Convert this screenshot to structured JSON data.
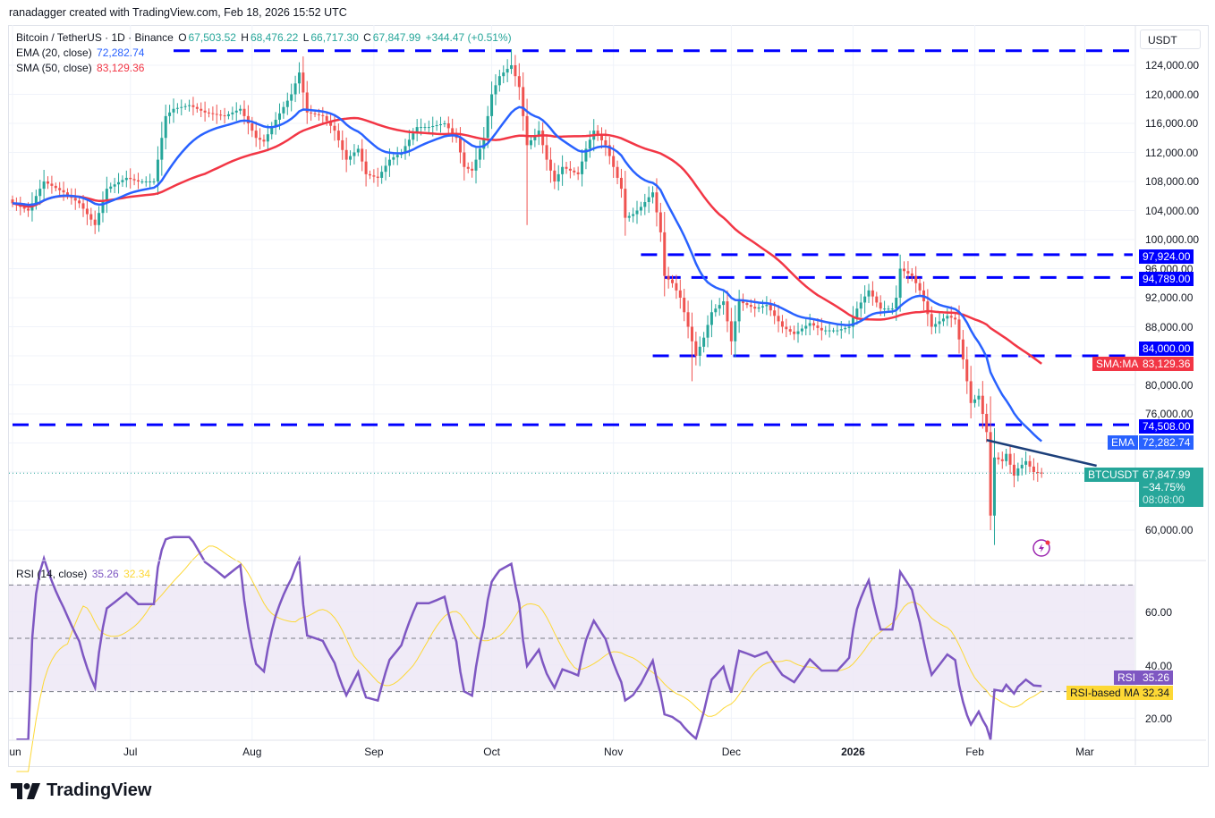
{
  "header": {
    "attribution": "ranadagger created with TradingView.com, Feb 18, 2026 15:52 UTC"
  },
  "legend": {
    "symbol": "Bitcoin / TetherUS · 1D · Binance",
    "o_label": "O",
    "o": "67,503.52",
    "h_label": "H",
    "h": "68,476.22",
    "l_label": "L",
    "l": "66,717.30",
    "c_label": "C",
    "c": "67,847.99",
    "change": "+344.47 (+0.51%)",
    "ema_label": "EMA (20, close)",
    "ema_value": "72,282.74",
    "sma_label": "SMA (50, close)",
    "sma_value": "83,129.36"
  },
  "rsi_legend": {
    "label": "RSI (14, close)",
    "value": "35.26",
    "ma_value": "32.34"
  },
  "axis": {
    "currency": "USDT",
    "price_ticks": [
      124000,
      120000,
      116000,
      112000,
      108000,
      104000,
      100000,
      96000,
      92000,
      88000,
      80000,
      76000,
      60000
    ],
    "rsi_ticks": [
      "60.00",
      "40.00",
      "20.00"
    ],
    "date_ticks": [
      {
        "date": "2025-06-01",
        "label": "Jun"
      },
      {
        "date": "2025-07-01",
        "label": "Jul"
      },
      {
        "date": "2025-08-01",
        "label": "Aug"
      },
      {
        "date": "2025-09-01",
        "label": "Sep"
      },
      {
        "date": "2025-10-01",
        "label": "Oct"
      },
      {
        "date": "2025-11-01",
        "label": "Nov"
      },
      {
        "date": "2025-12-01",
        "label": "Dec"
      },
      {
        "date": "2026-01-01",
        "label": "2026",
        "bold": true
      },
      {
        "date": "2026-02-01",
        "label": "Feb"
      },
      {
        "date": "2026-03-01",
        "label": "Mar"
      }
    ]
  },
  "price_labels": {
    "r1": "97,924.00",
    "r2": "94,789.00",
    "s1": "84,000.00",
    "sma_tag": "SMA:MA",
    "sma": "83,129.36",
    "s2": "74,508.00",
    "ema_tag": "EMA",
    "ema": "72,282.74",
    "symbol_tag": "BTCUSDT",
    "last": "67,847.99",
    "pct": "−34.75%",
    "countdown": "08:08:00",
    "rsi_tag": "RSI",
    "rsi": "35.26",
    "rsi_ma_tag": "RSI-based MA",
    "rsi_ma": "32.34"
  },
  "colors": {
    "up": "#26a69a",
    "down": "#ef5350",
    "ema": "#2962ff",
    "sma": "#f23645",
    "levels": "#0000ff",
    "trendline": "#1c3f7a",
    "rsi": "#7e57c2",
    "rsi_ma": "#fdd835",
    "rsi_band": "#ede7f6"
  },
  "branding": {
    "logo_text": "TradingView"
  },
  "chart_data": {
    "type": "candlestick",
    "interval": "1D",
    "symbol": "BTCUSDT",
    "ylim": [
      58000,
      127800
    ],
    "closes": [
      [
        "2025-06-01",
        105000
      ],
      [
        "2025-06-05",
        104000
      ],
      [
        "2025-06-09",
        108000
      ],
      [
        "2025-06-14",
        106500
      ],
      [
        "2025-06-18",
        105000
      ],
      [
        "2025-06-22",
        102000
      ],
      [
        "2025-06-25",
        107000
      ],
      [
        "2025-06-30",
        108500
      ],
      [
        "2025-07-03",
        108000
      ],
      [
        "2025-07-07",
        108000
      ],
      [
        "2025-07-10",
        117000
      ],
      [
        "2025-07-12",
        118000
      ],
      [
        "2025-07-16",
        118500
      ],
      [
        "2025-07-20",
        117500
      ],
      [
        "2025-07-25",
        117000
      ],
      [
        "2025-07-29",
        118000
      ],
      [
        "2025-08-02",
        114000
      ],
      [
        "2025-08-04",
        113500
      ],
      [
        "2025-08-07",
        116500
      ],
      [
        "2025-08-11",
        120000
      ],
      [
        "2025-08-13",
        123000
      ],
      [
        "2025-08-15",
        117500
      ],
      [
        "2025-08-19",
        117000
      ],
      [
        "2025-08-22",
        115000
      ],
      [
        "2025-08-25",
        111000
      ],
      [
        "2025-08-28",
        112500
      ],
      [
        "2025-08-30",
        109000
      ],
      [
        "2025-09-02",
        108500
      ],
      [
        "2025-09-05",
        111000
      ],
      [
        "2025-09-08",
        112000
      ],
      [
        "2025-09-12",
        115500
      ],
      [
        "2025-09-15",
        115500
      ],
      [
        "2025-09-19",
        116000
      ],
      [
        "2025-09-22",
        114000
      ],
      [
        "2025-09-24",
        110000
      ],
      [
        "2025-09-26",
        109500
      ],
      [
        "2025-09-29",
        114000
      ],
      [
        "2025-10-01",
        120000
      ],
      [
        "2025-10-03",
        122500
      ],
      [
        "2025-10-06",
        124000
      ],
      [
        "2025-10-08",
        121000
      ],
      [
        "2025-10-10",
        113000
      ],
      [
        "2025-10-13",
        115000
      ],
      [
        "2025-10-15",
        111000
      ],
      [
        "2025-10-17",
        108000
      ],
      [
        "2025-10-19",
        110000
      ],
      [
        "2025-10-23",
        109000
      ],
      [
        "2025-10-25",
        112500
      ],
      [
        "2025-10-27",
        115000
      ],
      [
        "2025-10-30",
        113000
      ],
      [
        "2025-11-01",
        110000
      ],
      [
        "2025-11-03",
        107000
      ],
      [
        "2025-11-04",
        103000
      ],
      [
        "2025-11-06",
        103500
      ],
      [
        "2025-11-08",
        104500
      ],
      [
        "2025-11-11",
        106500
      ],
      [
        "2025-11-13",
        101000
      ],
      [
        "2025-11-14",
        95000
      ],
      [
        "2025-11-16",
        94000
      ],
      [
        "2025-11-18",
        92000
      ],
      [
        "2025-11-21",
        86000
      ],
      [
        "2025-11-22",
        84000
      ],
      [
        "2025-11-24",
        86500
      ],
      [
        "2025-11-26",
        90000
      ],
      [
        "2025-11-29",
        91500
      ],
      [
        "2025-12-01",
        86000
      ],
      [
        "2025-12-03",
        91500
      ],
      [
        "2025-12-07",
        90500
      ],
      [
        "2025-12-10",
        91000
      ],
      [
        "2025-12-14",
        88000
      ],
      [
        "2025-12-17",
        87000
      ],
      [
        "2025-12-21",
        88500
      ],
      [
        "2025-12-24",
        87500
      ],
      [
        "2025-12-28",
        87500
      ],
      [
        "2025-12-31",
        88000
      ],
      [
        "2026-01-02",
        90500
      ],
      [
        "2026-01-05",
        93000
      ],
      [
        "2026-01-08",
        90500
      ],
      [
        "2026-01-11",
        90500
      ],
      [
        "2026-01-12",
        92000
      ],
      [
        "2026-01-13",
        96000
      ],
      [
        "2026-01-16",
        95000
      ],
      [
        "2026-01-18",
        93000
      ],
      [
        "2026-01-19",
        91500
      ],
      [
        "2026-01-21",
        88000
      ],
      [
        "2026-01-25",
        89500
      ],
      [
        "2026-01-27",
        89000
      ],
      [
        "2026-01-29",
        83500
      ],
      [
        "2026-01-31",
        77500
      ],
      [
        "2026-02-02",
        78500
      ],
      [
        "2026-02-03",
        76000
      ],
      [
        "2026-02-04",
        73500
      ],
      [
        "2026-02-05",
        62000
      ],
      [
        "2026-02-06",
        70000
      ],
      [
        "2026-02-08",
        69500
      ],
      [
        "2026-02-09",
        70500
      ],
      [
        "2026-02-11",
        67500
      ],
      [
        "2026-02-12",
        68500
      ],
      [
        "2026-02-14",
        69500
      ],
      [
        "2026-02-16",
        68000
      ],
      [
        "2026-02-18",
        67847.99
      ]
    ],
    "extreme_wicks": [
      {
        "date": "2025-10-06",
        "high": 126200
      },
      {
        "date": "2025-10-10",
        "low": 102000
      },
      {
        "date": "2025-11-21",
        "low": 80500
      },
      {
        "date": "2026-02-05",
        "low": 60000
      }
    ],
    "horizontal_levels": [
      {
        "price": 126000,
        "from": "2025-07-12"
      },
      {
        "price": 97924,
        "from": "2025-11-08"
      },
      {
        "price": 94789,
        "from": "2025-11-14"
      },
      {
        "price": 84000,
        "from": "2025-11-11"
      },
      {
        "price": 74508,
        "from": "2025-06-01"
      }
    ],
    "trendline": {
      "from": [
        "2026-02-04",
        72400
      ],
      "to": [
        "2026-03-04",
        68860
      ]
    },
    "indicators": {
      "ema_period": 20,
      "sma_period": 50,
      "rsi_period": 14,
      "rsi_ma_period": 14,
      "rsi_bands": [
        70,
        50,
        30
      ]
    }
  }
}
